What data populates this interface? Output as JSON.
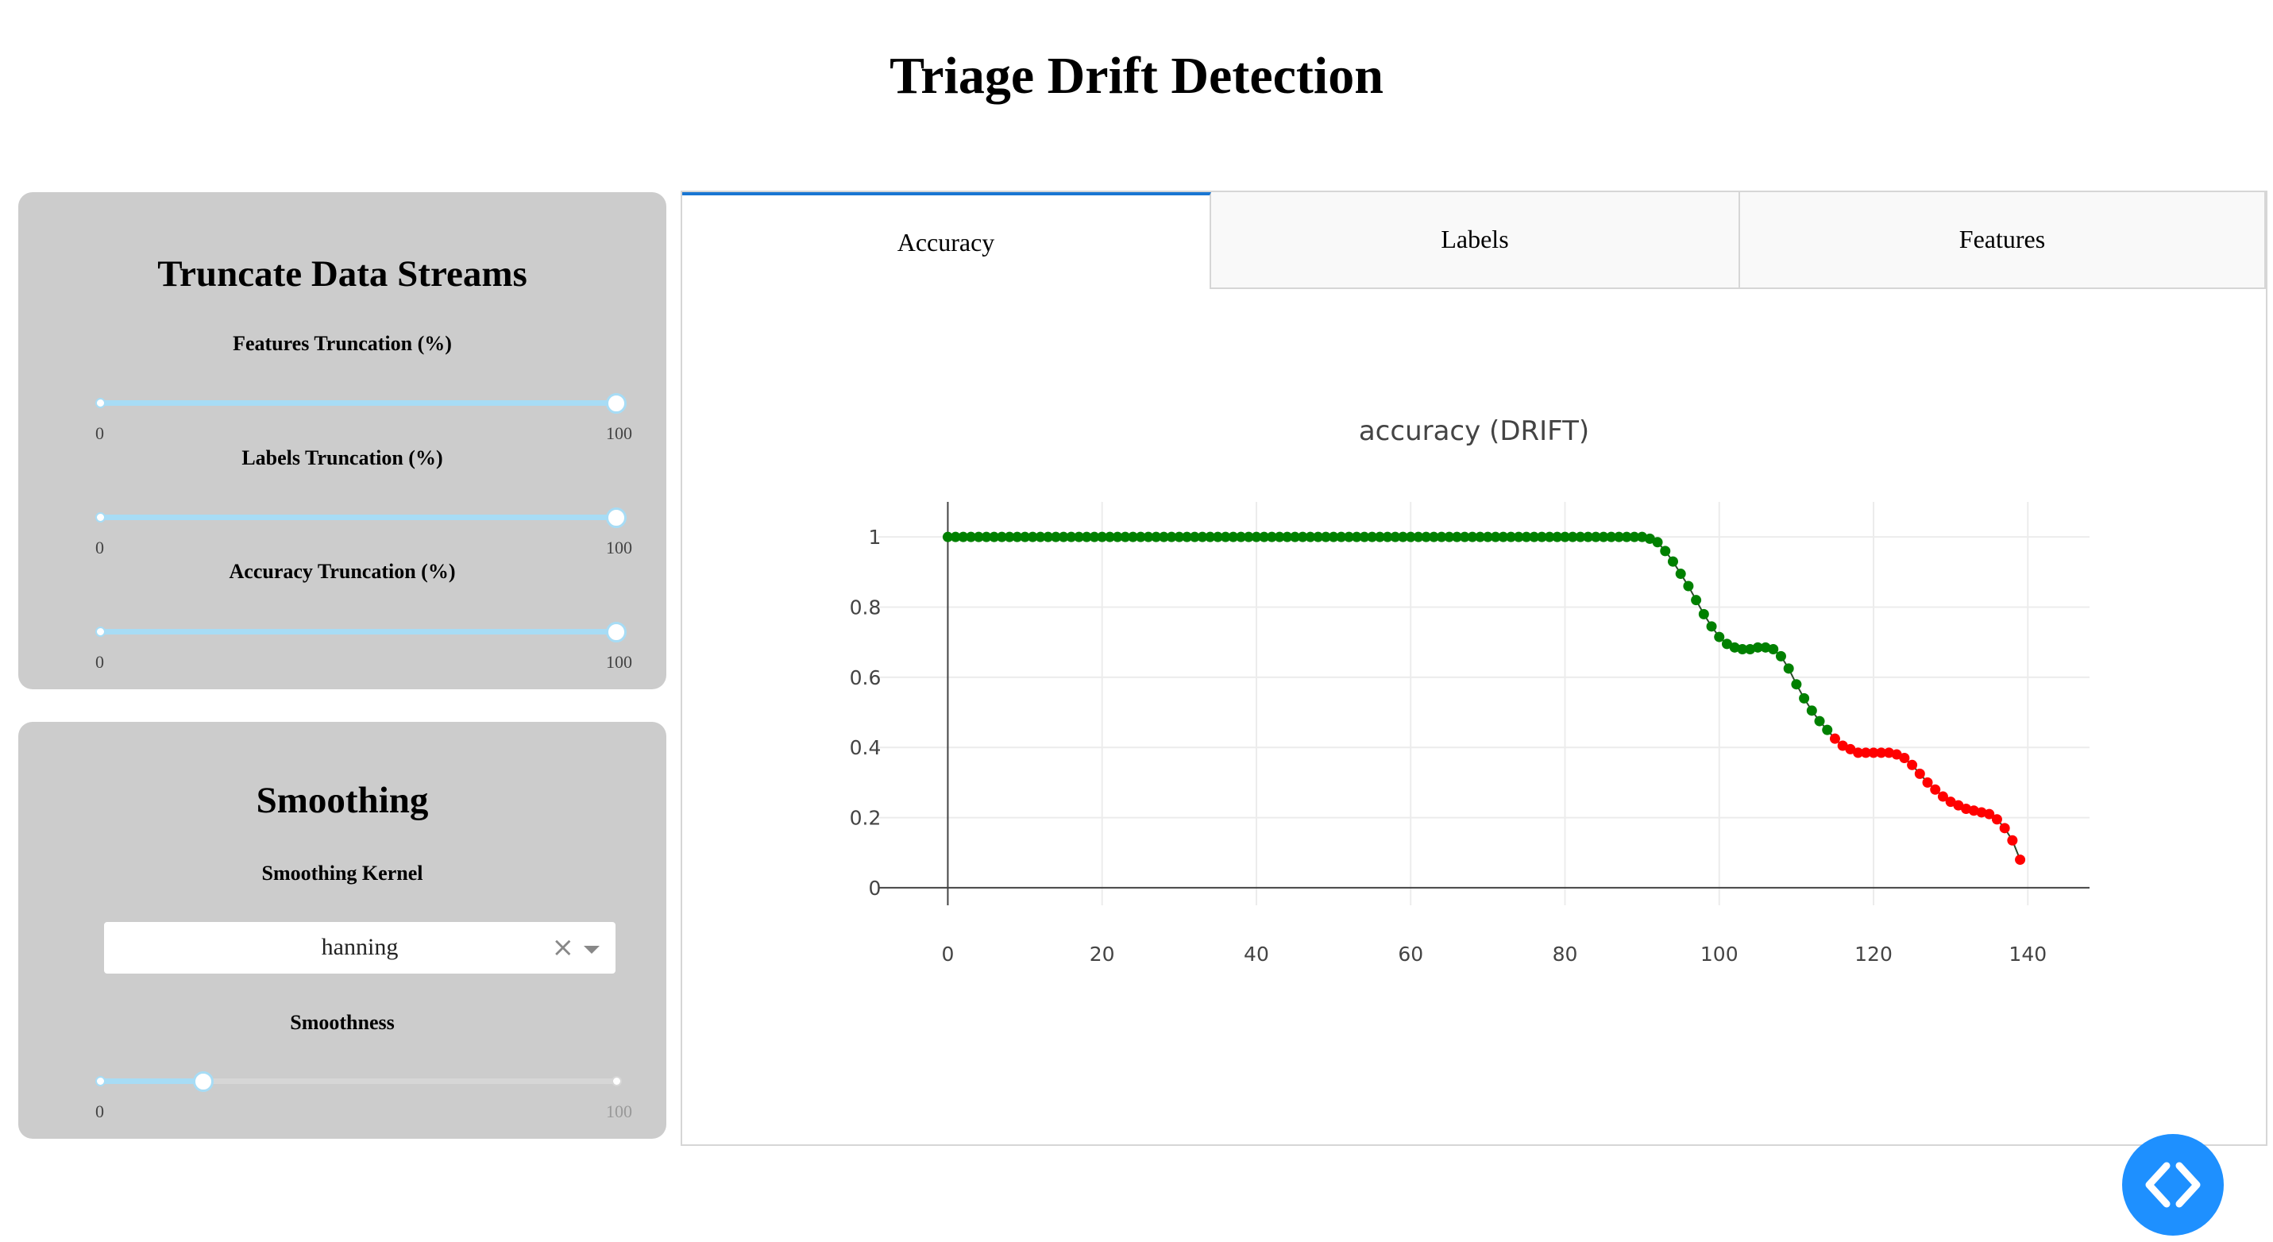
{
  "page": {
    "title": "Triage Drift Detection"
  },
  "truncate_panel": {
    "heading": "Truncate Data Streams",
    "sliders": [
      {
        "label": "Features Truncation (%)",
        "min_label": "0",
        "max_label": "100",
        "value": 100
      },
      {
        "label": "Labels Truncation (%)",
        "min_label": "0",
        "max_label": "100",
        "value": 100
      },
      {
        "label": "Accuracy Truncation (%)",
        "min_label": "0",
        "max_label": "100",
        "value": 100
      }
    ]
  },
  "smoothing_panel": {
    "heading": "Smoothing",
    "kernel_label": "Smoothing Kernel",
    "kernel_value": "hanning",
    "clear_symbol": "×",
    "smoothness_label": "Smoothness",
    "smoothness": {
      "min_label": "0",
      "max_label": "100",
      "value": 20
    }
  },
  "tabs": [
    {
      "label": "Accuracy",
      "active": true
    },
    {
      "label": "Labels",
      "active": false
    },
    {
      "label": "Features",
      "active": false
    }
  ],
  "chart_data": {
    "type": "scatter",
    "title": "accuracy  (DRIFT)",
    "xlim": [
      -9,
      148
    ],
    "ylim": [
      -0.05,
      1.1
    ],
    "x_ticks": [
      0,
      20,
      40,
      60,
      80,
      100,
      120,
      140
    ],
    "y_ticks": [
      0,
      0.2,
      0.4,
      0.6,
      0.8,
      1
    ],
    "y_tick_labels": [
      "0",
      "0.2",
      "0.4",
      "0.6",
      "0.8",
      "1"
    ],
    "grid": true,
    "colors": {
      "ok": "#008000",
      "drift": "#ff0000"
    },
    "drift_start_index": 115,
    "series": [
      {
        "x": [
          0,
          1,
          2,
          3,
          4,
          5,
          6,
          7,
          8,
          9,
          10,
          11,
          12,
          13,
          14,
          15,
          16,
          17,
          18,
          19,
          20,
          21,
          22,
          23,
          24,
          25,
          26,
          27,
          28,
          29,
          30,
          31,
          32,
          33,
          34,
          35,
          36,
          37,
          38,
          39,
          40,
          41,
          42,
          43,
          44,
          45,
          46,
          47,
          48,
          49,
          50,
          51,
          52,
          53,
          54,
          55,
          56,
          57,
          58,
          59,
          60,
          61,
          62,
          63,
          64,
          65,
          66,
          67,
          68,
          69,
          70,
          71,
          72,
          73,
          74,
          75,
          76,
          77,
          78,
          79,
          80,
          81,
          82,
          83,
          84,
          85,
          86,
          87,
          88,
          89,
          90,
          91,
          92,
          93,
          94,
          95,
          96,
          97,
          98,
          99,
          100,
          101,
          102,
          103,
          104,
          105,
          106,
          107,
          108,
          109,
          110,
          111,
          112,
          113,
          114,
          115,
          116,
          117,
          118,
          119,
          120,
          121,
          122,
          123,
          124,
          125,
          126,
          127,
          128,
          129,
          130,
          131,
          132,
          133,
          134,
          135,
          136,
          137,
          138,
          139
        ],
        "y": [
          1,
          1,
          1,
          1,
          1,
          1,
          1,
          1,
          1,
          1,
          1,
          1,
          1,
          1,
          1,
          1,
          1,
          1,
          1,
          1,
          1,
          1,
          1,
          1,
          1,
          1,
          1,
          1,
          1,
          1,
          1,
          1,
          1,
          1,
          1,
          1,
          1,
          1,
          1,
          1,
          1,
          1,
          1,
          1,
          1,
          1,
          1,
          1,
          1,
          1,
          1,
          1,
          1,
          1,
          1,
          1,
          1,
          1,
          1,
          1,
          1,
          1,
          1,
          1,
          1,
          1,
          1,
          1,
          1,
          1,
          1,
          1,
          1,
          1,
          1,
          1,
          1,
          1,
          1,
          1,
          1,
          1,
          1,
          1,
          1,
          1,
          1,
          1,
          1,
          1,
          1,
          0.995,
          0.985,
          0.96,
          0.93,
          0.895,
          0.86,
          0.82,
          0.78,
          0.745,
          0.715,
          0.695,
          0.685,
          0.68,
          0.68,
          0.685,
          0.685,
          0.68,
          0.66,
          0.625,
          0.58,
          0.54,
          0.505,
          0.475,
          0.45,
          0.425,
          0.405,
          0.395,
          0.385,
          0.385,
          0.385,
          0.385,
          0.385,
          0.38,
          0.37,
          0.35,
          0.325,
          0.3,
          0.28,
          0.26,
          0.245,
          0.235,
          0.225,
          0.22,
          0.215,
          0.21,
          0.195,
          0.17,
          0.135,
          0.08
        ]
      }
    ]
  }
}
